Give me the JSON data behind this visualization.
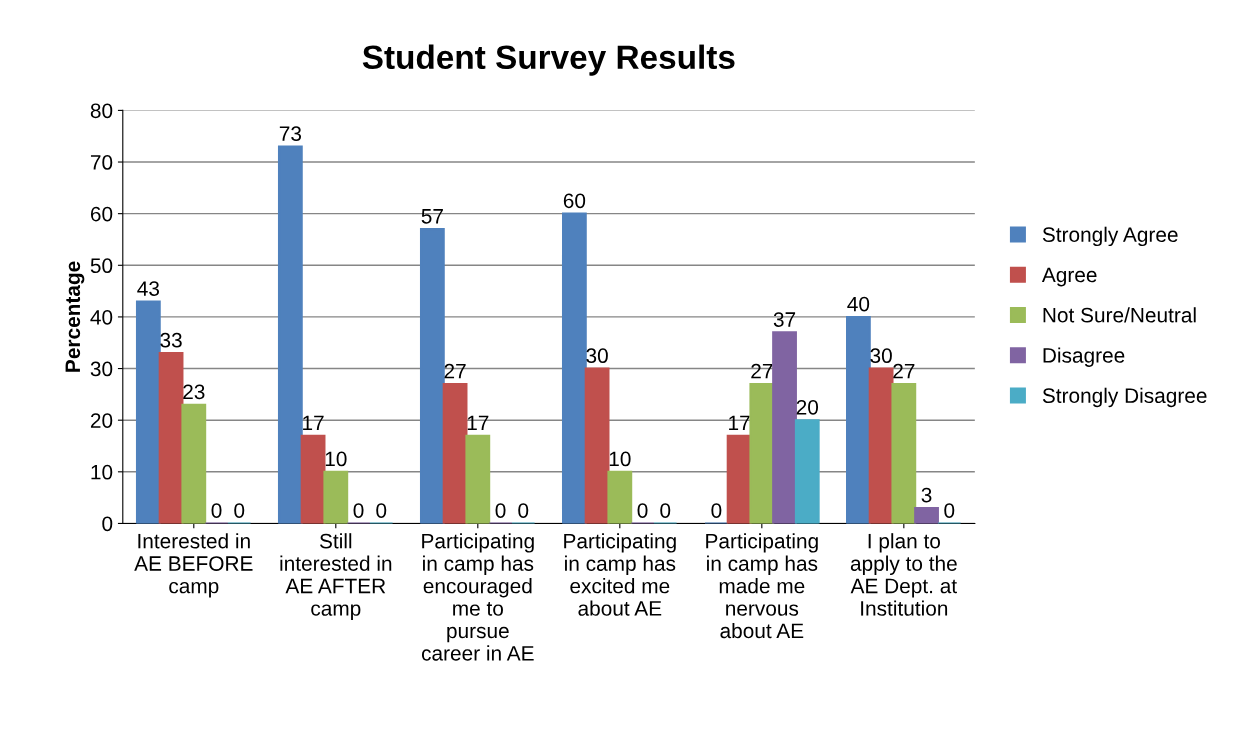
{
  "chart_data": {
    "type": "bar",
    "title": "Student Survey Results",
    "ylabel": "Percentage",
    "categories": [
      "Interested in\nAE BEFORE\ncamp",
      "Still\ninterested in\nAE AFTER\ncamp",
      "Participating\nin camp has\nencouraged\nme to\npursue\ncareer in AE",
      "Participating\nin camp has\nexcited me\nabout AE",
      "Participating\nin camp has\nmade me\nnervous\nabout AE",
      "I plan to\napply to the\nAE Dept. at\nInstitution"
    ],
    "series": [
      {
        "name": "Strongly Agree",
        "color": "#4f81bd",
        "values": [
          43,
          73,
          57,
          60,
          0,
          40
        ]
      },
      {
        "name": "Agree",
        "color": "#c0504d",
        "values": [
          33,
          17,
          27,
          30,
          17,
          30
        ]
      },
      {
        "name": "Not Sure/Neutral",
        "color": "#9bbb59",
        "values": [
          23,
          10,
          17,
          10,
          27,
          27
        ]
      },
      {
        "name": "Disagree",
        "color": "#8064a2",
        "values": [
          0,
          0,
          0,
          0,
          37,
          3
        ]
      },
      {
        "name": "Strongly Disagree",
        "color": "#4bacc6",
        "values": [
          0,
          0,
          0,
          0,
          20,
          0
        ]
      }
    ],
    "ylim": [
      0,
      80
    ],
    "yticks": [
      0,
      10,
      20,
      30,
      40,
      50,
      60,
      70,
      80
    ],
    "grid": "y",
    "legend": "right",
    "data_labels": true
  }
}
